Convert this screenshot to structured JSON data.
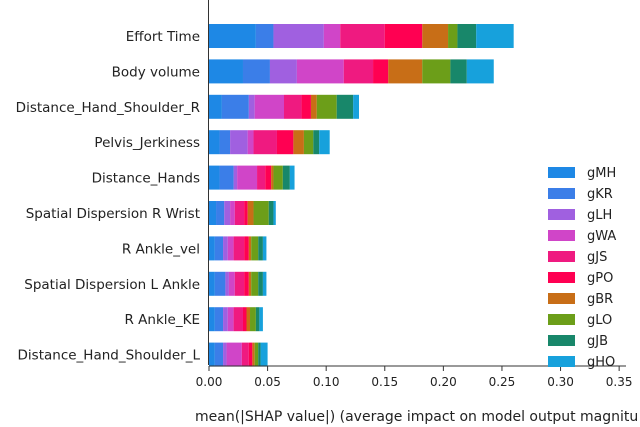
{
  "chart_data": {
    "type": "bar",
    "orientation": "horizontal",
    "stacked": true,
    "xlabel": "mean(|SHAP value|) (average impact on model output magnitu",
    "xlim": [
      0,
      0.355
    ],
    "xticks": [
      0.0,
      0.05,
      0.1,
      0.15,
      0.2,
      0.25,
      0.3,
      0.35
    ],
    "grid": false,
    "legend_position": "center-right",
    "categories": [
      "Effort Time",
      "Body volume",
      "Distance_Hand_Shoulder_R",
      "Pelvis_Jerkiness",
      "Distance_Hands",
      "Spatial Dispersion R Wrist",
      "R Ankle_vel",
      "Spatial Dispersion L Ankle",
      "R Ankle_KE",
      "Distance_Hand_Shoulder_L"
    ],
    "series": [
      {
        "name": "gMH",
        "color": "#1e88e5",
        "values": [
          0.04,
          0.029,
          0.011,
          0.009,
          0.009,
          0.006,
          0.005,
          0.005,
          0.005,
          0.005
        ]
      },
      {
        "name": "gKR",
        "color": "#3b7ee8",
        "values": [
          0.015,
          0.023,
          0.023,
          0.009,
          0.012,
          0.007,
          0.007,
          0.009,
          0.007,
          0.007
        ]
      },
      {
        "name": "gLH",
        "color": "#a060e0",
        "values": [
          0.043,
          0.023,
          0.005,
          0.015,
          0.003,
          0.005,
          0.004,
          0.003,
          0.004,
          0.003
        ]
      },
      {
        "name": "gWA",
        "color": "#d045c8",
        "values": [
          0.014,
          0.04,
          0.025,
          0.005,
          0.017,
          0.004,
          0.005,
          0.005,
          0.005,
          0.013
        ]
      },
      {
        "name": "gJS",
        "color": "#ef1a80",
        "values": [
          0.038,
          0.025,
          0.015,
          0.02,
          0.007,
          0.008,
          0.009,
          0.008,
          0.008,
          0.006
        ]
      },
      {
        "name": "gPO",
        "color": "#ff0052",
        "values": [
          0.032,
          0.013,
          0.008,
          0.014,
          0.005,
          0.003,
          0.004,
          0.004,
          0.003,
          0.003
        ]
      },
      {
        "name": "gBR",
        "color": "#c86e17",
        "values": [
          0.022,
          0.029,
          0.005,
          0.009,
          0.002,
          0.005,
          0.002,
          0.002,
          0.003,
          0.002
        ]
      },
      {
        "name": "gLO",
        "color": "#6c9e19",
        "values": [
          0.008,
          0.024,
          0.017,
          0.008,
          0.008,
          0.013,
          0.006,
          0.006,
          0.005,
          0.003
        ]
      },
      {
        "name": "gJB",
        "color": "#18876a",
        "values": [
          0.016,
          0.014,
          0.014,
          0.005,
          0.006,
          0.004,
          0.004,
          0.004,
          0.003,
          0.002
        ]
      },
      {
        "name": "gHO",
        "color": "#17a1dc",
        "values": [
          0.032,
          0.023,
          0.005,
          0.009,
          0.004,
          0.002,
          0.003,
          0.003,
          0.003,
          0.006
        ]
      }
    ]
  }
}
